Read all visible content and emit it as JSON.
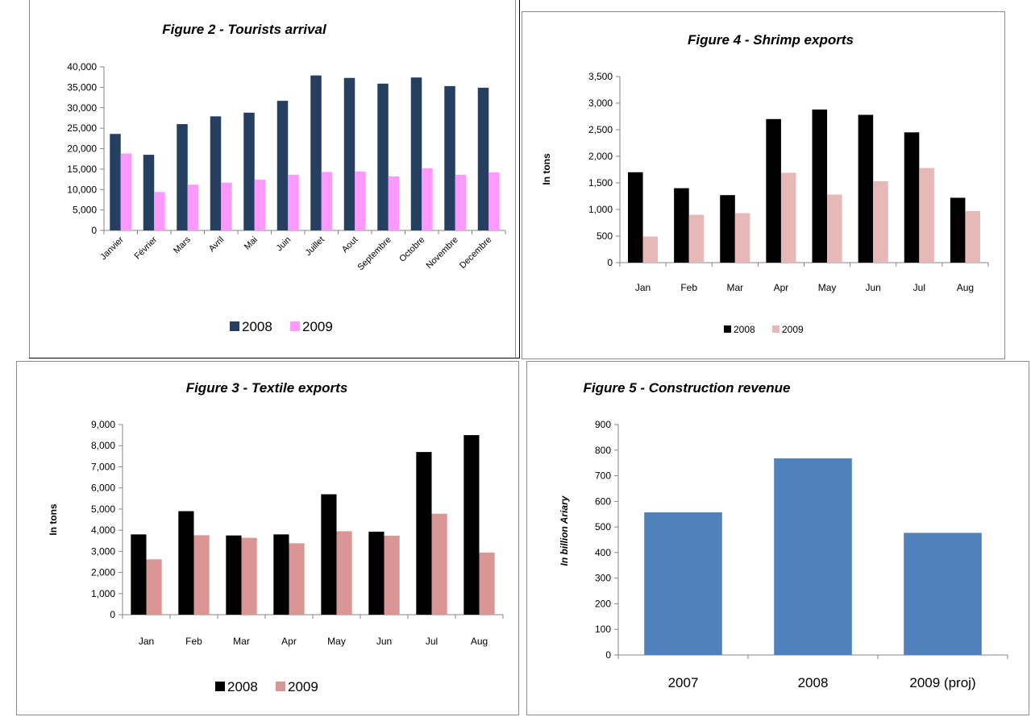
{
  "chart_data": [
    {
      "id": "tourists",
      "type": "bar",
      "title": "Figure 2 - Tourists arrival",
      "ylabel": "",
      "ylim": [
        0,
        40000
      ],
      "yticks": [
        "0",
        "5,000",
        "10,000",
        "15,000",
        "20,000",
        "25,000",
        "30,000",
        "35,000",
        "40,000"
      ],
      "categories": [
        "Janvier",
        "Février",
        "Mars",
        "Avril",
        "Mai",
        "Juin",
        "Juillet",
        "Aout",
        "Septembre",
        "Octobre",
        "Novembre",
        "Decembre"
      ],
      "series": [
        {
          "name": "2008",
          "color": "#243f60",
          "values": [
            23600,
            18500,
            26000,
            27900,
            28800,
            31700,
            37900,
            37300,
            35900,
            37400,
            35300,
            34900
          ]
        },
        {
          "name": "2009",
          "color": "#ff99ff",
          "values": [
            18800,
            9400,
            11200,
            11700,
            12400,
            13600,
            14300,
            14400,
            13200,
            15200,
            13600,
            14200
          ]
        }
      ],
      "legend": "bottom"
    },
    {
      "id": "shrimp",
      "type": "bar",
      "title": "Figure 4 - Shrimp exports",
      "ylabel": "In tons",
      "ylim": [
        0,
        3500
      ],
      "yticks": [
        "0",
        "500",
        "1,000",
        "1,500",
        "2,000",
        "2,500",
        "3,000",
        "3,500"
      ],
      "categories": [
        "Jan",
        "Feb",
        "Mar",
        "Apr",
        "May",
        "Jun",
        "Jul",
        "Aug"
      ],
      "series": [
        {
          "name": "2008",
          "color": "#000000",
          "values": [
            1700,
            1400,
            1270,
            2700,
            2880,
            2780,
            2450,
            1220
          ]
        },
        {
          "name": "2009",
          "color": "#e6b9b8",
          "values": [
            490,
            900,
            930,
            1690,
            1280,
            1530,
            1780,
            970
          ]
        }
      ],
      "legend": "bottom"
    },
    {
      "id": "textile",
      "type": "bar",
      "title": "Figure 3 -  Textile exports",
      "ylabel": "In tons",
      "ylim": [
        0,
        9000
      ],
      "yticks": [
        "0",
        "1,000",
        "2,000",
        "3,000",
        "4,000",
        "5,000",
        "6,000",
        "7,000",
        "8,000",
        "9,000"
      ],
      "categories": [
        "Jan",
        "Feb",
        "Mar",
        "Apr",
        "May",
        "Jun",
        "Jul",
        "Aug"
      ],
      "series": [
        {
          "name": "2008",
          "color": "#000000",
          "values": [
            3800,
            4900,
            3750,
            3800,
            5700,
            3930,
            7700,
            8500
          ]
        },
        {
          "name": "2009",
          "color": "#da9694",
          "values": [
            2620,
            3760,
            3640,
            3380,
            3950,
            3740,
            4780,
            2940
          ]
        }
      ],
      "legend": "bottom"
    },
    {
      "id": "construction",
      "type": "bar",
      "title": "Figure 5 - Construction revenue",
      "ylabel": "In billion Ariary",
      "ylim": [
        0,
        900
      ],
      "yticks": [
        "0",
        "100",
        "200",
        "300",
        "400",
        "500",
        "600",
        "700",
        "800",
        "900"
      ],
      "categories": [
        "2007",
        "2008",
        "2009 (proj)"
      ],
      "series": [
        {
          "name": "",
          "color": "#4f81bd",
          "values": [
            557,
            768,
            477
          ]
        }
      ],
      "legend": "none"
    }
  ]
}
